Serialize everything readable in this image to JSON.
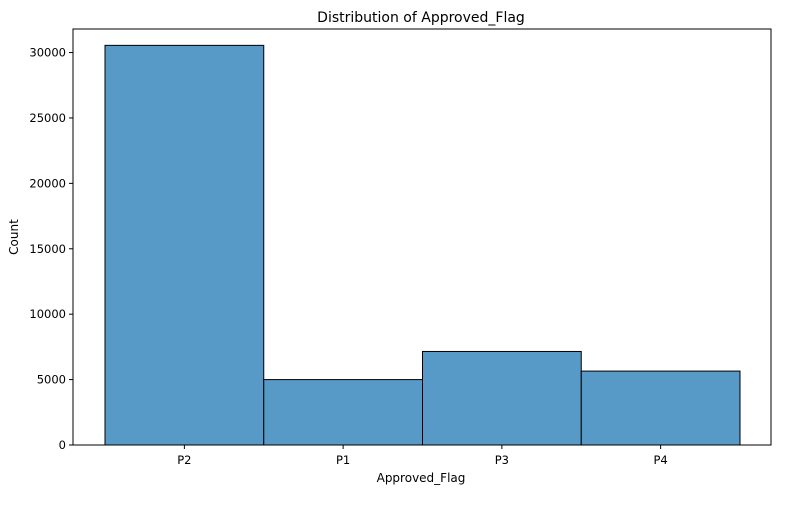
{
  "chart_data": {
    "type": "bar",
    "title": "Distribution of Approved_Flag",
    "xlabel": "Approved_Flag",
    "ylabel": "Count",
    "categories": [
      "P2",
      "P1",
      "P3",
      "P4"
    ],
    "values": [
      30550,
      5000,
      7150,
      5650
    ],
    "ylim": [
      0,
      31800
    ],
    "yticks": [
      0,
      5000,
      10000,
      15000,
      20000,
      25000,
      30000
    ],
    "grid": false,
    "legend": "none",
    "bar_color": "#5799c7",
    "edge_color": "#000000"
  }
}
